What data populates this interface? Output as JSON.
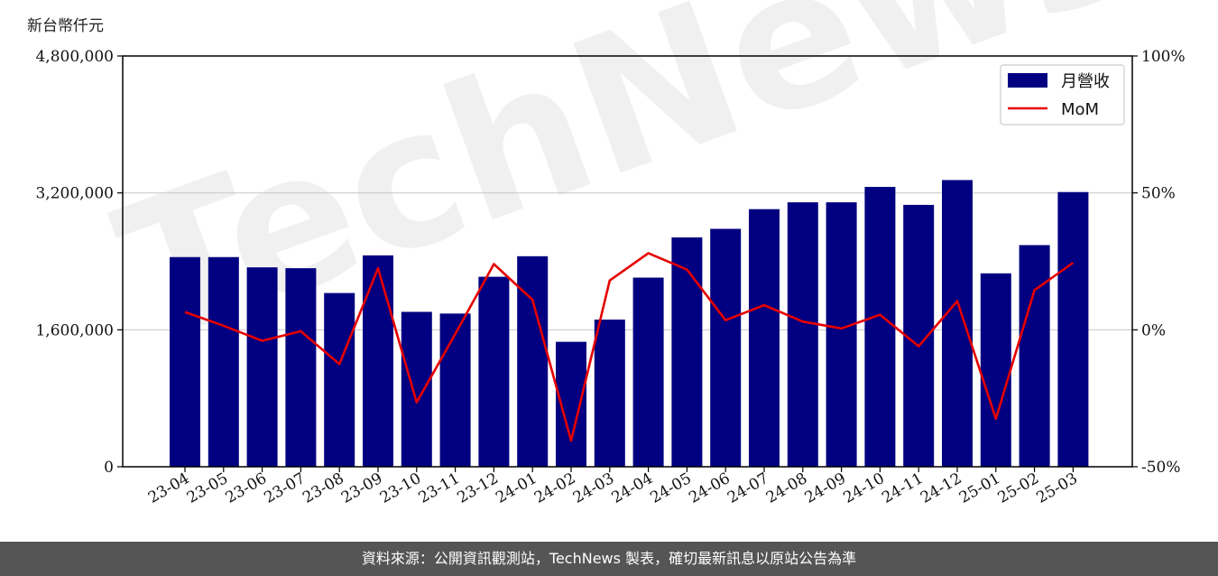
{
  "unit_label": "新台幣仟元",
  "footer_text": "資料來源：公開資訊觀測站，TechNews 製表，確切最新訊息以原站公告為準",
  "watermark_text": "TechNews",
  "colors": {
    "bar": "#000080",
    "line": "#e60000",
    "grid": "#cccccc"
  },
  "chart_data": {
    "type": "bar",
    "categories": [
      "23-04",
      "23-05",
      "23-06",
      "23-07",
      "23-08",
      "23-09",
      "23-10",
      "23-11",
      "23-12",
      "24-01",
      "24-02",
      "24-03",
      "24-04",
      "24-05",
      "24-06",
      "24-07",
      "24-08",
      "24-09",
      "24-10",
      "24-11",
      "24-12",
      "25-01",
      "25-02",
      "25-03"
    ],
    "series": [
      {
        "name": "月營收",
        "axis": "left",
        "type": "bar",
        "values": [
          2450000,
          2450000,
          2330000,
          2320000,
          2030000,
          2470000,
          1810000,
          1790000,
          2220000,
          2460000,
          1460000,
          1720000,
          2210000,
          2680000,
          2780000,
          3010000,
          3090000,
          3090000,
          3270000,
          3060000,
          3350000,
          2260000,
          2590000,
          3210000
        ]
      },
      {
        "name": "MoM",
        "axis": "right",
        "type": "line",
        "values": [
          6.5,
          1.5,
          -4,
          -0.5,
          -12.5,
          22.5,
          -26.5,
          -1.5,
          24,
          11,
          -40.5,
          18,
          28,
          22,
          3.5,
          9,
          3,
          0.5,
          5.5,
          -6,
          10.5,
          -32.5,
          14.5,
          24.5
        ]
      }
    ],
    "y_left": {
      "ylim": [
        0,
        4800000
      ],
      "ticks": [
        "0",
        "1,600,000",
        "3,200,000",
        "4,800,000"
      ],
      "tick_values": [
        0,
        1600000,
        3200000,
        4800000
      ]
    },
    "y_right": {
      "ylim": [
        -50,
        100
      ],
      "ticks": [
        "-50%",
        "0%",
        "50%",
        "100%"
      ],
      "tick_values": [
        -50,
        0,
        50,
        100
      ]
    },
    "grid": "horizontal",
    "legend": "top-right"
  }
}
